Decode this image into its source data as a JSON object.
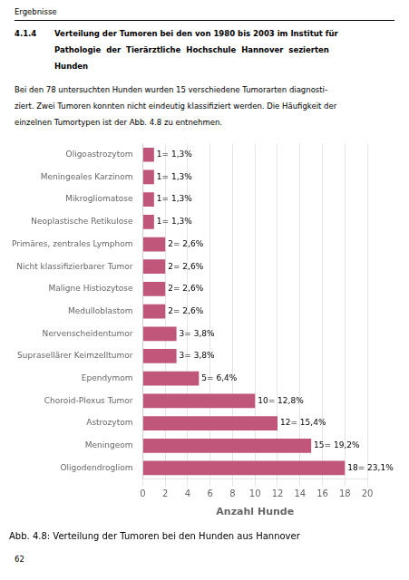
{
  "chart_data": {
    "type": "bar",
    "orientation": "horizontal",
    "title": "Abb. 4.8: Verteilung der Tumoren bei den Hunden aus Hannover",
    "annotations": [
      "Ergebnisse",
      "4.1.4",
      "Verteilung der Tumoren bei den von 1980 bis 2003 im Institut für",
      "Pathologie  der  Tierärztliche  Hochschule  Hannover  sezierten",
      "Hunden",
      "Bei den 78 untersuchten Hunden wurden 15 verschiedene Tumorarten diagnosti-",
      "ziert. Zwei Tumoren konnten nicht eindeutig klassifiziert werden. Die Häufigkeit der",
      "einzelnen Tumortypen ist der Abb. 4.8 zu entnehmen.",
      "62"
    ],
    "categories": [
      "Oligodendrogliom",
      "Meningeom",
      "Astrozytom",
      "Choroid-Plexus Tumor",
      "Ependymom",
      "Suprasellärer Keimzelltumor",
      "Nervenscheidentumor",
      "Medulloblastom",
      "Maligne Histiozytose",
      "Nicht klassifizierbarer Tumor",
      "Primäres, zentrales Lymphom",
      "Neoplastische Retikulose",
      "Mikrogliomatose",
      "Meningeales Karzinom",
      "Oligoastrozytom"
    ],
    "values": [
      18,
      15,
      12,
      10,
      5,
      3,
      3,
      2,
      2,
      2,
      2,
      1,
      1,
      1,
      1
    ],
    "value_labels": [
      "18= 23,1%",
      "15= 19,2%",
      "12= 15,4%",
      "10= 12,8%",
      "5= 6,4%",
      "3= 3,8%",
      "3= 3,8%",
      "2= 2,6%",
      "2= 2,6%",
      "2= 2,6%",
      "2= 2,6%",
      "1= 1,3%",
      "1= 1,3%",
      "1= 1,3%",
      "1= 1,3%"
    ],
    "color": "#c0567a",
    "xlabel": "Anzahl Hunde",
    "xlim": [
      0,
      20
    ],
    "xticks": [
      0,
      2,
      4,
      6,
      8,
      10,
      12,
      14,
      16,
      18,
      20
    ],
    "grid": true,
    "data_labels": true
  }
}
